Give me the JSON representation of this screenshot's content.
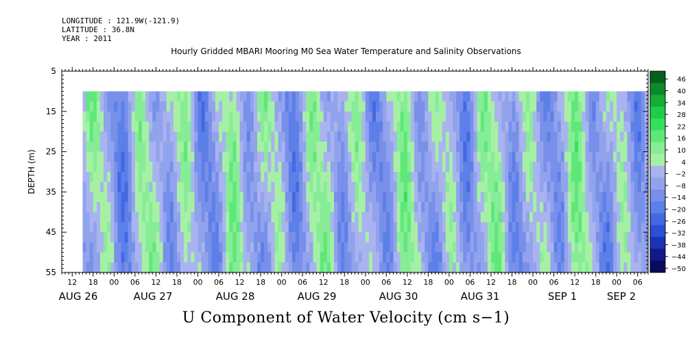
{
  "header": {
    "longitude": "LONGITUDE : 121.9W(-121.9)",
    "latitude": "LATITUDE : 36.8N",
    "year": "YEAR : 2011"
  },
  "chart_data": {
    "type": "heatmap",
    "title": "Hourly Gridded MBARI Mooring M0 Sea Water Temperature and Salinity Observations",
    "variable_label": "U Component of Water Velocity (cm s−1)",
    "ylabel": "DEPTH (m)",
    "y_range": [
      5,
      55
    ],
    "y_ticks": [
      5,
      15,
      25,
      35,
      45,
      55
    ],
    "y_inverted": true,
    "data_depth_range": [
      10,
      55
    ],
    "x_start_hour": "AUG 26 09:00",
    "x_end_hour": "SEP 2 09:00",
    "data_start_hour": "AUG 26 15:00",
    "data_end_hour": "SEP 2 09:00",
    "hour_tick_labels": [
      "12",
      "18",
      "00",
      "06",
      "12",
      "18",
      "00",
      "06",
      "12",
      "18",
      "00",
      "06",
      "12",
      "18",
      "00",
      "06",
      "12",
      "18",
      "00",
      "06",
      "12",
      "18",
      "00",
      "06",
      "12",
      "18",
      "00",
      "06"
    ],
    "day_labels": [
      "AUG 26",
      "AUG 27",
      "AUG 28",
      "AUG 29",
      "AUG 30",
      "AUG 31",
      "SEP 1",
      "SEP 2"
    ],
    "colorbar": {
      "levels": [
        -50,
        -44,
        -38,
        -32,
        -26,
        -20,
        -14,
        -8,
        -2,
        4,
        10,
        16,
        22,
        28,
        34,
        40,
        46
      ],
      "tick_labels": [
        "46",
        "40",
        "34",
        "28",
        "22",
        "16",
        "10",
        "4",
        "−2",
        "−8",
        "−14",
        "−20",
        "−26",
        "−32",
        "−38",
        "−44",
        "−50"
      ],
      "colors": {
        "-50": "#0b0b5e",
        "-44": "#121a8a",
        "-38": "#1d33b6",
        "-32": "#2c4fd6",
        "-26": "#4468e4",
        "-20": "#5d7fe8",
        "-14": "#7890ea",
        "-8": "#91a3ec",
        "-2": "#a9b3ef",
        "4": "#a6f0a6",
        "10": "#86ed96",
        "16": "#5ee878",
        "22": "#35df5c",
        "28": "#1dcd48",
        "34": "#13ad38",
        "40": "#0c8a2a",
        "46": "#075f1c"
      }
    }
  }
}
